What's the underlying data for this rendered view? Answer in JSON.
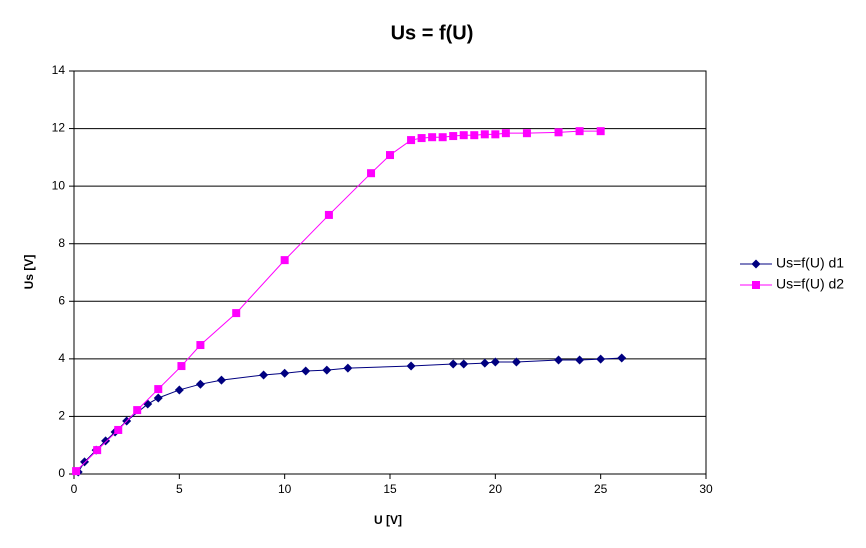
{
  "chart_data": {
    "type": "line",
    "title": "Us = f(U)",
    "x_label": "U [V]",
    "y_label": "Us [V]",
    "xlim": [
      0,
      30
    ],
    "xticks": [
      0,
      5,
      10,
      15,
      20,
      25,
      30
    ],
    "ylim": [
      0,
      14
    ],
    "yticks": [
      0,
      2,
      4,
      6,
      8,
      10,
      12,
      14
    ],
    "grid": true,
    "legend": "right",
    "series": [
      {
        "name": "Us=f(U) d1",
        "color": "#000080",
        "marker": "diamond",
        "x": [
          0.2,
          0.5,
          1.05,
          1.5,
          1.95,
          2.5,
          3.5,
          4,
          5,
          6,
          7,
          9,
          10,
          11,
          12,
          13,
          16,
          18,
          18.5,
          19.5,
          20,
          21,
          23,
          24,
          25,
          26
        ],
        "values": [
          0.07,
          0.42,
          0.83,
          1.15,
          1.46,
          1.84,
          2.43,
          2.64,
          2.92,
          3.12,
          3.26,
          3.44,
          3.5,
          3.58,
          3.61,
          3.68,
          3.75,
          3.82,
          3.82,
          3.85,
          3.89,
          3.89,
          3.96,
          3.96,
          3.99,
          4.03
        ]
      },
      {
        "name": "Us=f(U) d2",
        "color": "#ff00ff",
        "marker": "square",
        "x": [
          0.1,
          1.1,
          2.1,
          3,
          4,
          5.1,
          6,
          7.7,
          10,
          12.1,
          14.1,
          15,
          16,
          16.5,
          17,
          17.5,
          18,
          18.5,
          19,
          19.5,
          20,
          20.5,
          21.5,
          23,
          24,
          25
        ],
        "values": [
          0.1,
          0.83,
          1.53,
          2.22,
          2.95,
          3.75,
          4.48,
          5.59,
          7.43,
          9.0,
          10.45,
          11.08,
          11.6,
          11.67,
          11.7,
          11.7,
          11.74,
          11.77,
          11.77,
          11.8,
          11.8,
          11.84,
          11.84,
          11.87,
          11.91,
          11.91
        ]
      }
    ]
  }
}
